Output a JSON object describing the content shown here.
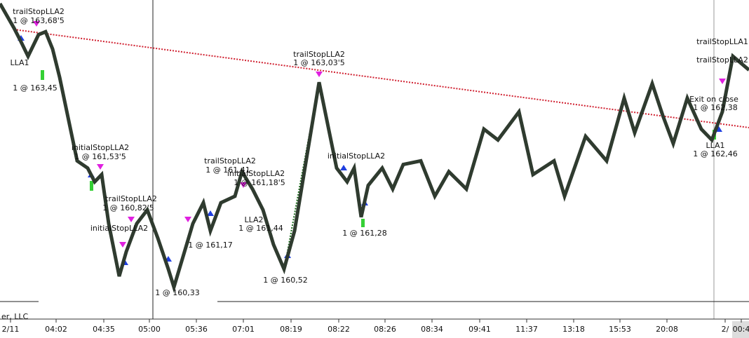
{
  "chart_data": {
    "type": "line",
    "x": [
      0,
      20,
      30,
      40,
      55,
      65,
      75,
      85,
      110,
      125,
      135,
      145,
      155,
      170,
      180,
      195,
      210,
      225,
      240,
      248,
      260,
      275,
      290,
      300,
      315,
      335,
      345,
      360,
      375,
      390,
      405,
      420,
      455,
      480,
      495,
      505,
      515,
      525,
      545,
      560,
      575,
      600,
      620,
      640,
      665,
      690,
      710,
      740,
      760,
      790,
      805,
      835,
      865,
      890,
      905,
      930,
      945,
      960,
      980,
      1000,
      1015,
      1030,
      1045,
      1068
    ],
    "series": [
      {
        "color": "#2f3b2f",
        "values": [
          164.21,
          163.87,
          163.68,
          163.48,
          163.78,
          163.82,
          163.58,
          163.19,
          162.03,
          161.93,
          161.74,
          161.84,
          161.16,
          160.43,
          160.77,
          161.16,
          161.35,
          160.96,
          160.53,
          160.28,
          160.67,
          161.16,
          161.45,
          161.06,
          161.45,
          161.54,
          161.88,
          161.64,
          161.35,
          160.87,
          160.53,
          161.06,
          163.12,
          161.93,
          161.74,
          161.93,
          161.25,
          161.69,
          161.93,
          161.64,
          161.98,
          162.03,
          161.54,
          161.88,
          161.64,
          162.47,
          162.32,
          162.71,
          161.84,
          162.03,
          161.54,
          162.37,
          162.03,
          162.9,
          162.42,
          163.1,
          162.66,
          162.27,
          162.9,
          162.47,
          162.32,
          162.71,
          163.48,
          163.29
        ]
      }
    ],
    "xlim": [
      0,
      1068
    ],
    "ylim": [
      160.08,
      164.26
    ],
    "xticks": [
      {
        "value": 15,
        "label": "2/11"
      },
      {
        "value": 80,
        "label": "04:02"
      },
      {
        "value": 148,
        "label": "04:35"
      },
      {
        "value": 213,
        "label": "05:00"
      },
      {
        "value": 280,
        "label": "05:36"
      },
      {
        "value": 347,
        "label": "07:01"
      },
      {
        "value": 415,
        "label": "08:19"
      },
      {
        "value": 483,
        "label": "08:22"
      },
      {
        "value": 549,
        "label": "08:26"
      },
      {
        "value": 616,
        "label": "08:34"
      },
      {
        "value": 684,
        "label": "09:41"
      },
      {
        "value": 751,
        "label": "11:37"
      },
      {
        "value": 818,
        "label": "13:18"
      },
      {
        "value": 884,
        "label": "15:53"
      },
      {
        "value": 951,
        "label": "20:08"
      },
      {
        "value": 1034,
        "label": "2/"
      },
      {
        "value": 1057,
        "label": "00:4"
      }
    ],
    "annotations": [
      "trailStopLLA2",
      "1 @ 163,68'5",
      "LLA1",
      "1 @ 163,45",
      "initialStopLLA2",
      "1 @ 161,53'5",
      "trailStopLLA2",
      "1 @ 160,82'5",
      "initialStopLLA2",
      "trailStopLLA2",
      "1 @ 163,03'5",
      "trailStopLLA2",
      "1 @ 161,41",
      "initialStopLLA2",
      "1 @ 161,18'5",
      "LLA2",
      "1 @ 161,44",
      "1 @ 160,52",
      "1 @ 161,28",
      "1 @ 160,33",
      "1 @ 161,17",
      "initialStopLLA2",
      "Exit on close",
      "1 @ 162,38",
      "LLA1",
      "1 @ 162,46",
      "trailStopLLA1",
      "trailStopLLA2"
    ],
    "footer": "er, LLC"
  }
}
